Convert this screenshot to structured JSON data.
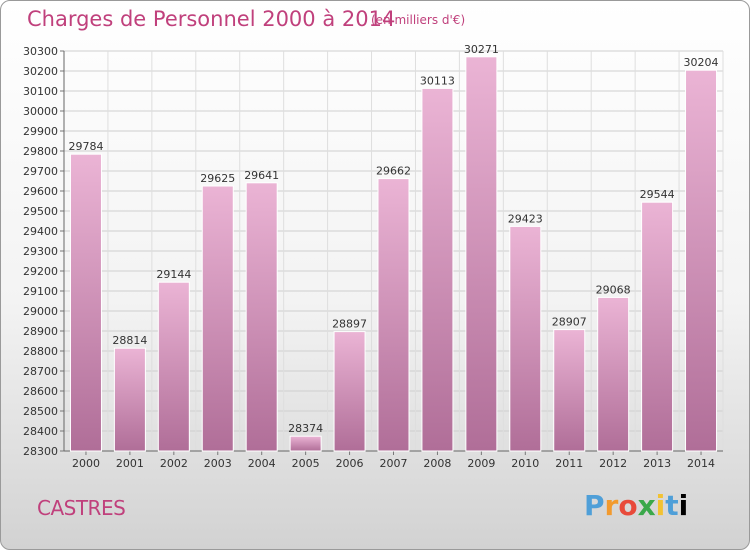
{
  "header": {
    "title": "Charges de Personnel 2000 à 2014",
    "subtitle": "(en milliers d'€)"
  },
  "footer": {
    "city": "CASTRES",
    "logo": "Proxiti"
  },
  "colors": {
    "bar_light": "#ebb4d5",
    "bar_dark": "#b06e98",
    "title": "#c0407c"
  },
  "chart_data": {
    "type": "bar",
    "title": "Charges de Personnel 2000 à 2014",
    "subtitle": "(en milliers d'€)",
    "xlabel": "",
    "ylabel": "",
    "categories": [
      "2000",
      "2001",
      "2002",
      "2003",
      "2004",
      "2005",
      "2006",
      "2007",
      "2008",
      "2009",
      "2010",
      "2011",
      "2012",
      "2013",
      "2014"
    ],
    "values": [
      29784,
      28814,
      29144,
      29625,
      29641,
      28374,
      28897,
      29662,
      30113,
      30271,
      29423,
      28907,
      29068,
      29544,
      30204
    ],
    "ylim": [
      28300,
      30300
    ],
    "yticks": [
      28300,
      28400,
      28500,
      28600,
      28700,
      28800,
      28900,
      29000,
      29100,
      29200,
      29300,
      29400,
      29500,
      29600,
      29700,
      29800,
      29900,
      30000,
      30100,
      30200,
      30300
    ],
    "grid": true,
    "legend": "none"
  }
}
